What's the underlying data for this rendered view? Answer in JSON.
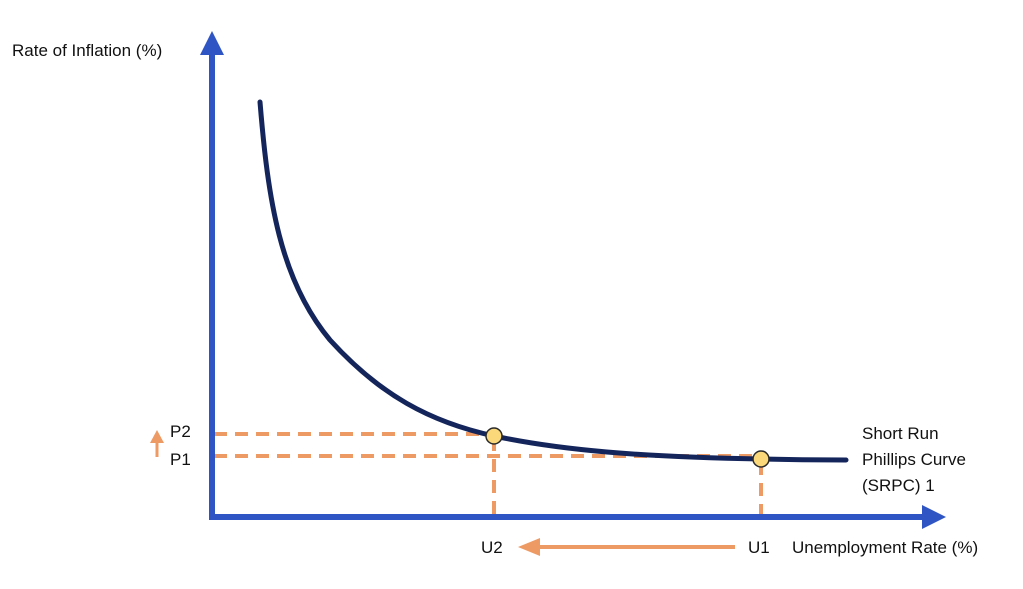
{
  "y_axis_label": "Rate of Inflation (%)",
  "x_axis_label": "Unemployment Rate (%)",
  "curve_label_lines": [
    "Short Run",
    "Phillips Curve",
    "(SRPC) 1"
  ],
  "points": {
    "p1": "P1",
    "p2": "P2",
    "u1": "U1",
    "u2": "U2"
  },
  "colors": {
    "axis": "#2f55c4",
    "curve": "#14255b",
    "guide": "#ee9a64",
    "marker_fill": "#fbd97a",
    "marker_stroke": "#2a2a2a"
  },
  "movements": {
    "unemployment": "U1 to U2 (decrease)",
    "inflation": "P1 to P2 (increase)"
  }
}
